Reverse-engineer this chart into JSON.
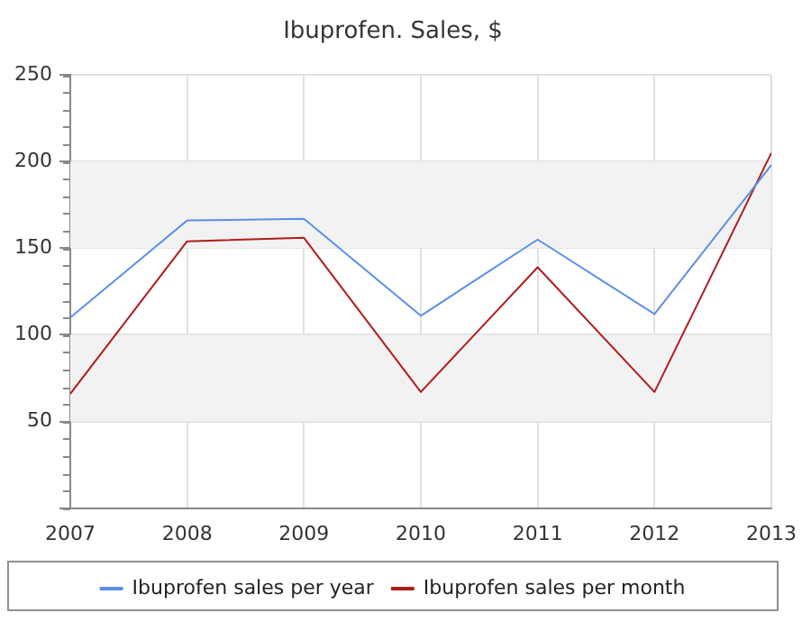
{
  "chart_data": {
    "type": "line",
    "title": "Ibuprofen. Sales, $",
    "x": [
      2007,
      2008,
      2009,
      2010,
      2011,
      2012,
      2013
    ],
    "series": [
      {
        "name": "Ibuprofen sales per year",
        "color": "#5b8fe8",
        "values": [
          110,
          166,
          167,
          111,
          155,
          112,
          198
        ]
      },
      {
        "name": "Ibuprofen sales per month",
        "color": "#b01c1c",
        "values": [
          66,
          154,
          156,
          67,
          139,
          67,
          205
        ]
      }
    ],
    "xlim": [
      2007,
      2013
    ],
    "xticks": [
      2007,
      2008,
      2009,
      2010,
      2011,
      2012,
      2013
    ],
    "ylim": [
      0,
      250
    ],
    "yticks": [
      {
        "value": 0,
        "label": null
      },
      50,
      100,
      150,
      200,
      250
    ],
    "bands": [
      {
        "axis": "y",
        "from": 50,
        "to": 100,
        "color": "#f2f2f2"
      },
      {
        "axis": "y",
        "from": 150,
        "to": 200,
        "color": "#f2f2f2"
      }
    ],
    "grid": true,
    "legend": "bottom",
    "marker": "none",
    "line_style": "solid"
  }
}
